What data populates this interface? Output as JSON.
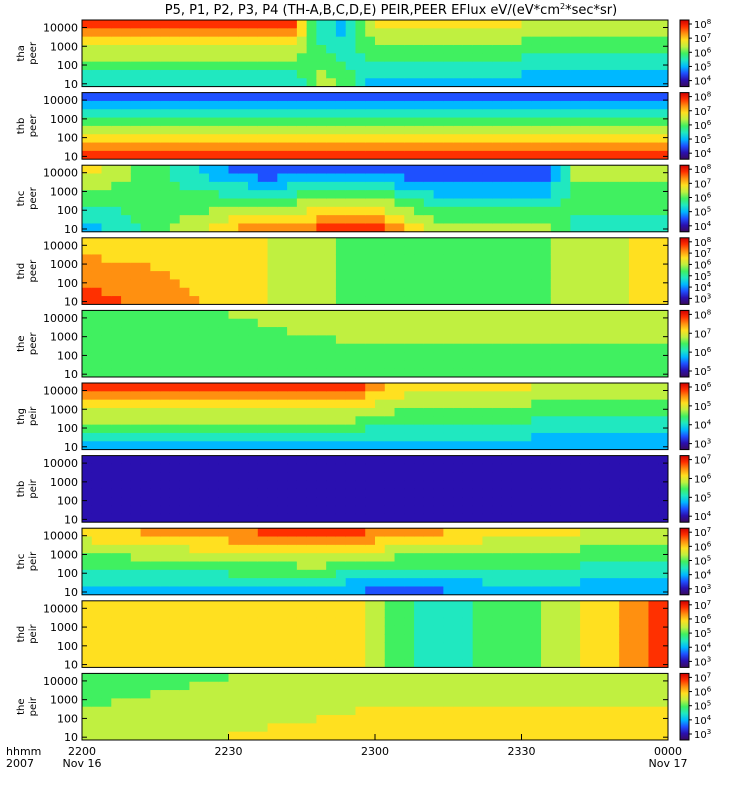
{
  "title": "P5, P1, P2, P3, P4 (TH-A,B,C,D,E) PEIR,PEER EFlux eV/(eV*cm",
  "title_sup": "2",
  "title_tail": "*sec*sr)",
  "colors": {
    "colormap": [
      "#3a0a5c",
      "#2a10b0",
      "#1e50ff",
      "#00b8ff",
      "#20e8c0",
      "#40f060",
      "#c0f040",
      "#ffe020",
      "#ff9010",
      "#ff3000",
      "#d00000"
    ]
  },
  "chart_data": {
    "type": "heatmap",
    "x_label_line1": "hhmm",
    "x_label_line2": "2007",
    "x_ticks": [
      {
        "label": "2200",
        "sub": "Nov 16"
      },
      {
        "label": "2230",
        "sub": ""
      },
      {
        "label": "2300",
        "sub": ""
      },
      {
        "label": "2330",
        "sub": ""
      },
      {
        "label": "0000",
        "sub": "Nov 17"
      }
    ],
    "y_scale": "log",
    "y_ticks": [
      "10000",
      "1000",
      "100",
      "10"
    ],
    "panels": [
      {
        "probe": "tha",
        "species": "peer",
        "cb_base": "10",
        "cb_exps": [
          "8",
          "7",
          "6",
          "5",
          "4"
        ],
        "profile": [
          [
            0,
            8.5,
            3.5
          ],
          [
            0.36,
            8.5,
            3.5
          ],
          [
            0.4,
            4,
            6
          ],
          [
            0.45,
            3,
            5
          ],
          [
            0.5,
            7,
            3
          ],
          [
            1,
            6,
            3
          ]
        ]
      },
      {
        "probe": "thb",
        "species": "peer",
        "cb_base": "10",
        "cb_exps": [
          "8",
          "7",
          "6",
          "5",
          "4"
        ],
        "profile": [
          [
            0,
            1.5,
            9
          ],
          [
            1,
            1.5,
            9
          ]
        ]
      },
      {
        "probe": "thc",
        "species": "peer",
        "cb_base": "10",
        "cb_exps": [
          "8",
          "7",
          "6",
          "5",
          "4"
        ],
        "profile": [
          [
            0,
            7,
            3
          ],
          [
            0.3,
            1.5,
            8
          ],
          [
            0.5,
            2,
            9
          ],
          [
            0.6,
            1.5,
            6
          ],
          [
            0.8,
            1.5,
            6
          ],
          [
            0.85,
            6,
            4
          ],
          [
            1,
            6,
            4
          ]
        ]
      },
      {
        "probe": "thd",
        "species": "peer",
        "cb_base": "10",
        "cb_exps": [
          "8",
          "7",
          "6",
          "5",
          "4",
          "3"
        ],
        "profile": [
          [
            0,
            7,
            9
          ],
          [
            0.25,
            7,
            7
          ],
          [
            0.5,
            5,
            5
          ],
          [
            0.75,
            5,
            5
          ],
          [
            1,
            7,
            7
          ]
        ]
      },
      {
        "probe": "the",
        "species": "peer",
        "cb_base": "10",
        "cb_exps": [
          "8",
          "7",
          "6",
          "5"
        ],
        "profile": [
          [
            0,
            5,
            5
          ],
          [
            0.5,
            6,
            5
          ],
          [
            1,
            6,
            5
          ]
        ]
      },
      {
        "probe": "thg",
        "species": "peir",
        "cb_base": "10",
        "cb_exps": [
          "6",
          "5",
          "4",
          "3"
        ],
        "profile": [
          [
            0,
            9,
            3
          ],
          [
            0.45,
            9,
            3
          ],
          [
            0.55,
            7,
            3
          ],
          [
            1,
            6,
            3
          ]
        ]
      },
      {
        "probe": "thb",
        "species": "peir",
        "cb_base": "10",
        "cb_exps": [
          "7",
          "6",
          "5",
          "4"
        ],
        "profile": [
          [
            0,
            1,
            1
          ],
          [
            1,
            1,
            1
          ]
        ]
      },
      {
        "probe": "thc",
        "species": "peir",
        "cb_base": "10",
        "cb_exps": [
          "7",
          "6",
          "5",
          "4",
          "3"
        ],
        "profile": [
          [
            0,
            7,
            3
          ],
          [
            0.4,
            9,
            3
          ],
          [
            0.55,
            8,
            2
          ],
          [
            0.7,
            7,
            3
          ],
          [
            1,
            6,
            3
          ]
        ]
      },
      {
        "probe": "thd",
        "species": "peir",
        "cb_base": "10",
        "cb_exps": [
          "7",
          "6",
          "5",
          "4",
          "3"
        ],
        "profile": [
          [
            0,
            7,
            7
          ],
          [
            0.45,
            7,
            7
          ],
          [
            0.6,
            4,
            4
          ],
          [
            0.75,
            5,
            5
          ],
          [
            0.9,
            7,
            7
          ],
          [
            1,
            9,
            9
          ]
        ]
      },
      {
        "probe": "the",
        "species": "peir",
        "cb_base": "10",
        "cb_exps": [
          "7",
          "6",
          "5",
          "4",
          "3"
        ],
        "profile": [
          [
            0,
            5,
            6
          ],
          [
            0.5,
            6,
            7
          ],
          [
            1,
            6,
            7
          ]
        ]
      }
    ]
  }
}
